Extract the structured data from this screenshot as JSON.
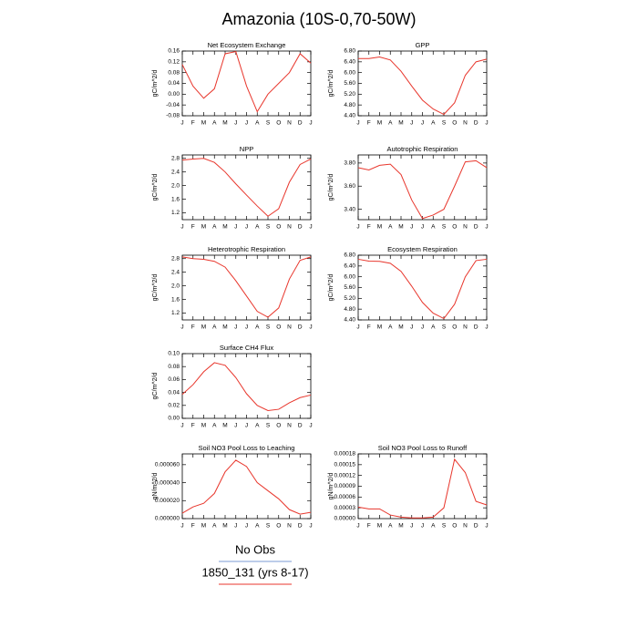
{
  "title": "Amazonia (10S-0,70-50W)",
  "legend": [
    {
      "name": "No Obs",
      "color": "#7b9bd6"
    },
    {
      "name": "1850_131 (yrs 8-17)",
      "color": "#e8362c"
    }
  ],
  "chart_data": [
    {
      "type": "line",
      "title": "Net Ecosystem Exchange",
      "y_label": "gC/m^2/d",
      "color": "#e8362c",
      "categories": [
        "J",
        "F",
        "M",
        "A",
        "M",
        "J",
        "J",
        "A",
        "S",
        "O",
        "N",
        "D",
        "J"
      ],
      "values": [
        0.11,
        0.03,
        -0.015,
        0.02,
        0.15,
        0.158,
        0.03,
        -0.065,
        0.0,
        0.04,
        0.08,
        0.15,
        0.115
      ],
      "ylim": [
        -0.08,
        0.16
      ],
      "yticks": [
        -0.08,
        -0.04,
        {
          "value": 0,
          "label": "0.00"
        },
        0.04,
        0.08,
        0.12,
        0.16
      ]
    },
    {
      "type": "line",
      "title": "GPP",
      "y_label": "gC/m^2/d",
      "color": "#e8362c",
      "categories": [
        "J",
        "F",
        "M",
        "A",
        "M",
        "J",
        "J",
        "A",
        "S",
        "O",
        "N",
        "D",
        "J"
      ],
      "values": [
        6.52,
        6.52,
        6.58,
        6.47,
        6.05,
        5.5,
        4.98,
        4.65,
        4.45,
        4.88,
        5.9,
        6.4,
        6.5
      ],
      "ylim": [
        4.4,
        6.8
      ],
      "yticks": [
        {
          "value": 4.4,
          "label": "4.40"
        },
        {
          "value": 4.8,
          "label": "4.80"
        },
        {
          "value": 5.2,
          "label": "5.20"
        },
        {
          "value": 5.6,
          "label": "5.60"
        },
        {
          "value": 6.0,
          "label": "6.00"
        },
        {
          "value": 6.4,
          "label": "6.40"
        },
        {
          "value": 6.8,
          "label": "6.80"
        }
      ]
    },
    {
      "type": "line",
      "title": "NPP",
      "y_label": "gC/m^2/d",
      "color": "#e8362c",
      "categories": [
        "J",
        "F",
        "M",
        "A",
        "M",
        "J",
        "J",
        "A",
        "S",
        "O",
        "N",
        "D",
        "J"
      ],
      "values": [
        2.75,
        2.78,
        2.8,
        2.68,
        2.4,
        2.05,
        1.72,
        1.4,
        1.1,
        1.32,
        2.1,
        2.62,
        2.78
      ],
      "ylim": [
        1.0,
        2.9
      ],
      "yticks": [
        1.2,
        1.6,
        {
          "value": 2.0,
          "label": "2.0"
        },
        2.4,
        2.8
      ]
    },
    {
      "type": "line",
      "title": "Autotrophic Respiration",
      "y_label": "gC/m^2/d",
      "color": "#e8362c",
      "categories": [
        "J",
        "F",
        "M",
        "A",
        "M",
        "J",
        "J",
        "A",
        "S",
        "O",
        "N",
        "D",
        "J"
      ],
      "values": [
        3.76,
        3.74,
        3.78,
        3.79,
        3.7,
        3.48,
        3.32,
        3.35,
        3.4,
        3.6,
        3.81,
        3.82,
        3.76
      ],
      "ylim": [
        3.31,
        3.87
      ],
      "yticks": [
        {
          "value": 3.4,
          "label": "3.40"
        },
        {
          "value": 3.6,
          "label": "3.60"
        },
        {
          "value": 3.8,
          "label": "3.80"
        }
      ]
    },
    {
      "type": "line",
      "title": "Heterotrophic Respiration",
      "y_label": "gC/m^2/d",
      "color": "#e8362c",
      "categories": [
        "J",
        "F",
        "M",
        "A",
        "M",
        "J",
        "J",
        "A",
        "S",
        "O",
        "N",
        "D",
        "J"
      ],
      "values": [
        2.85,
        2.8,
        2.78,
        2.72,
        2.55,
        2.15,
        1.7,
        1.25,
        1.08,
        1.35,
        2.2,
        2.75,
        2.85
      ],
      "ylim": [
        1.0,
        2.9
      ],
      "yticks": [
        1.2,
        1.6,
        {
          "value": 2.0,
          "label": "2.0"
        },
        2.4,
        2.8
      ]
    },
    {
      "type": "line",
      "title": "Ecosystem Respiration",
      "y_label": "gC/m^2/d",
      "color": "#e8362c",
      "categories": [
        "J",
        "F",
        "M",
        "A",
        "M",
        "J",
        "J",
        "A",
        "S",
        "O",
        "N",
        "D",
        "J"
      ],
      "values": [
        6.65,
        6.58,
        6.57,
        6.5,
        6.2,
        5.65,
        5.05,
        4.65,
        4.45,
        4.98,
        6.0,
        6.6,
        6.65
      ],
      "ylim": [
        4.4,
        6.8
      ],
      "yticks": [
        {
          "value": 4.4,
          "label": "4.40"
        },
        {
          "value": 4.8,
          "label": "4.80"
        },
        {
          "value": 5.2,
          "label": "5.20"
        },
        {
          "value": 5.6,
          "label": "5.60"
        },
        {
          "value": 6.0,
          "label": "6.00"
        },
        {
          "value": 6.4,
          "label": "6.40"
        },
        {
          "value": 6.8,
          "label": "6.80"
        }
      ]
    },
    {
      "type": "line",
      "title": "Surface CH4 Flux",
      "y_label": "gC/m^2/d",
      "color": "#e8362c",
      "categories": [
        "J",
        "F",
        "M",
        "A",
        "M",
        "J",
        "J",
        "A",
        "S",
        "O",
        "N",
        "D",
        "J"
      ],
      "values": [
        0.037,
        0.052,
        0.072,
        0.086,
        0.082,
        0.063,
        0.038,
        0.02,
        0.012,
        0.014,
        0.024,
        0.032,
        0.036
      ],
      "ylim": [
        0,
        0.1
      ],
      "yticks": [
        {
          "value": 0,
          "label": "0.00"
        },
        0.02,
        0.04,
        0.06,
        0.08,
        {
          "value": 0.1,
          "label": "0.10"
        }
      ]
    },
    {
      "type": "line",
      "title": "Soil NO3 Pool Loss to Leaching",
      "y_label": "gN/m^2/d",
      "color": "#e8362c",
      "categories": [
        "J",
        "F",
        "M",
        "A",
        "M",
        "J",
        "J",
        "A",
        "S",
        "O",
        "N",
        "D",
        "J"
      ],
      "values": [
        6e-06,
        1.3e-05,
        1.7e-05,
        2.8e-05,
        5.2e-05,
        6.5e-05,
        5.8e-05,
        4e-05,
        3.1e-05,
        2.2e-05,
        1e-05,
        5e-06,
        7e-06
      ],
      "ylim": [
        0,
        7.2e-05
      ],
      "yticks": [
        {
          "value": 0,
          "label": "0.000000"
        },
        {
          "value": 2e-05,
          "label": "0.000020"
        },
        {
          "value": 4e-05,
          "label": "0.000040"
        },
        {
          "value": 6e-05,
          "label": "0.000060"
        }
      ]
    },
    {
      "type": "line",
      "title": "Soil NO3 Pool Loss to Runoff",
      "y_label": "gN/m^2/d",
      "color": "#e8362c",
      "categories": [
        "J",
        "F",
        "M",
        "A",
        "M",
        "J",
        "J",
        "A",
        "S",
        "O",
        "N",
        "D",
        "J"
      ],
      "values": [
        3.2e-05,
        2.7e-05,
        2.7e-05,
        1e-05,
        4e-06,
        2e-06,
        2e-06,
        4e-06,
        3e-05,
        0.000165,
        0.000128,
        4.8e-05,
        3.8e-05
      ],
      "ylim": [
        0,
        0.00018
      ],
      "yticks": [
        {
          "value": 0,
          "label": "0.00000"
        },
        {
          "value": 3e-05,
          "label": "0.00003"
        },
        {
          "value": 6e-05,
          "label": "0.00006"
        },
        {
          "value": 9e-05,
          "label": "0.00009"
        },
        {
          "value": 0.00012,
          "label": "0.00012"
        },
        {
          "value": 0.00015,
          "label": "0.00015"
        },
        {
          "value": 0.00018,
          "label": "0.00018"
        }
      ]
    }
  ]
}
